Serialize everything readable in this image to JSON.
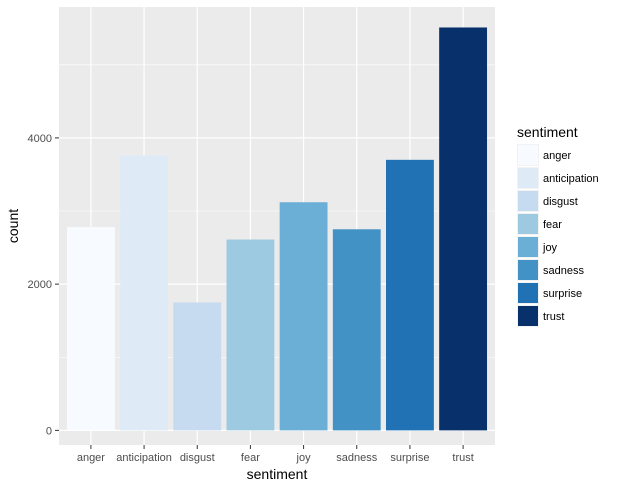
{
  "chart_data": {
    "type": "bar",
    "xlabel": "sentiment",
    "ylabel": "count",
    "categories": [
      "anger",
      "anticipation",
      "disgust",
      "fear",
      "joy",
      "sadness",
      "surprise",
      "trust"
    ],
    "values": [
      2780,
      3760,
      1750,
      2610,
      3120,
      2750,
      3700,
      5510
    ],
    "ylim": [
      -200,
      5790
    ],
    "yticks": [
      0,
      2000,
      4000
    ],
    "ytick_labels": [
      "0",
      "2000",
      "4000"
    ],
    "grid": true,
    "legend": {
      "title": "sentiment",
      "position": "right",
      "labels": [
        "anger",
        "anticipation",
        "disgust",
        "fear",
        "joy",
        "sadness",
        "surprise",
        "trust"
      ]
    },
    "colors": [
      "#F7FBFF",
      "#DEEBF7",
      "#C6DBEF",
      "#9ECAE1",
      "#6BAED6",
      "#4292C6",
      "#2171B5",
      "#08306B"
    ],
    "panel_background": "#EBEBEB",
    "grid_color": "#FFFFFF"
  }
}
